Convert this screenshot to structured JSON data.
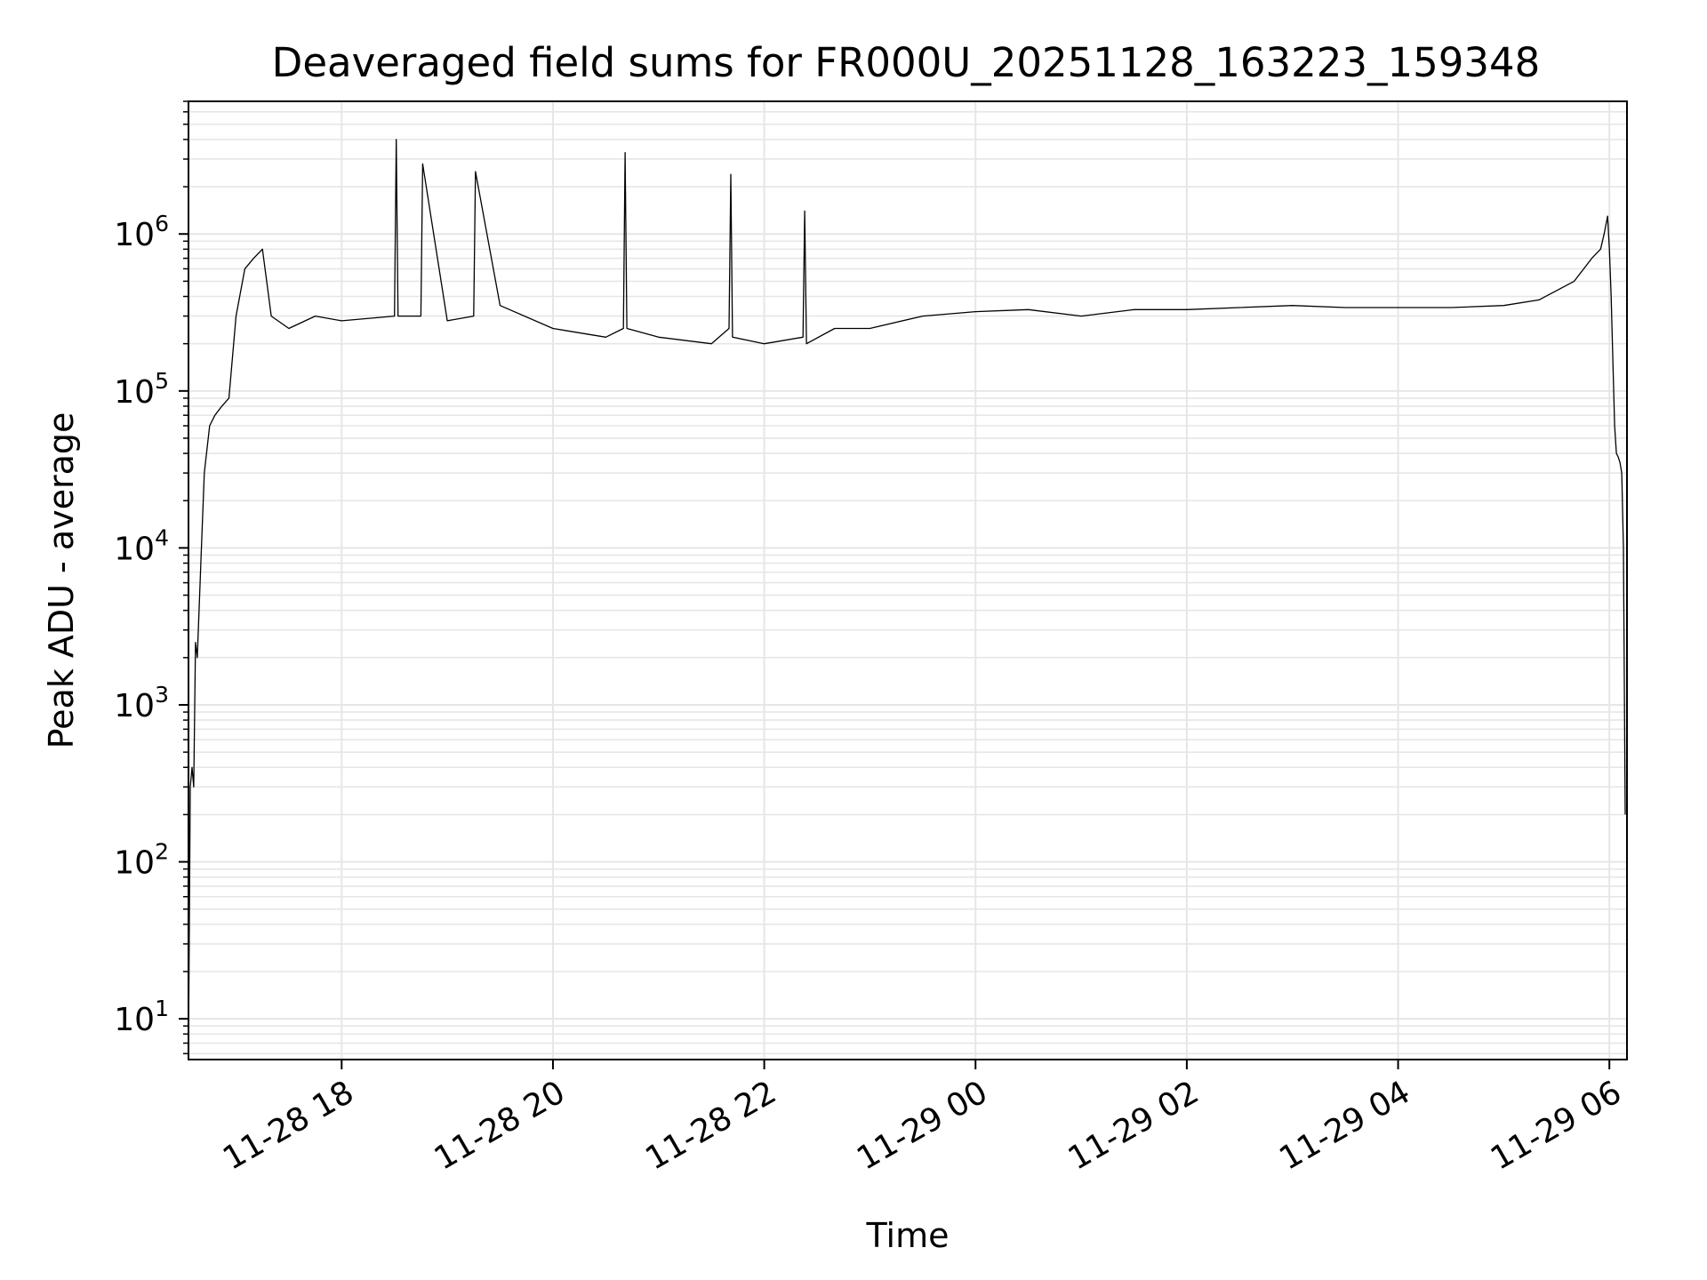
{
  "chart_data": {
    "type": "line",
    "title": "Deaveraged field sums for FR000U_20251128_163223_159348",
    "xlabel": "Time",
    "ylabel": "Peak ADU - average",
    "y_scale": "log",
    "grid": true,
    "legend": "none",
    "line_color": "#000000",
    "grid_color": "#e6e6e6",
    "xlim": [
      "2025-11-28T16:33",
      "2025-11-29T06:10"
    ],
    "ylim": [
      5.5,
      7000000
    ],
    "x_ticks": [
      {
        "value": "2025-11-28T18:00",
        "label": "11-28 18"
      },
      {
        "value": "2025-11-28T20:00",
        "label": "11-28 20"
      },
      {
        "value": "2025-11-28T22:00",
        "label": "11-28 22"
      },
      {
        "value": "2025-11-29T00:00",
        "label": "11-29 00"
      },
      {
        "value": "2025-11-29T02:00",
        "label": "11-29 02"
      },
      {
        "value": "2025-11-29T04:00",
        "label": "11-29 04"
      },
      {
        "value": "2025-11-29T06:00",
        "label": "11-29 06"
      }
    ],
    "y_ticks": [
      {
        "value": 10,
        "base": "10",
        "exp": "1"
      },
      {
        "value": 100,
        "base": "10",
        "exp": "2"
      },
      {
        "value": 1000,
        "base": "10",
        "exp": "3"
      },
      {
        "value": 10000,
        "base": "10",
        "exp": "4"
      },
      {
        "value": 100000,
        "base": "10",
        "exp": "5"
      },
      {
        "value": 1000000,
        "base": "10",
        "exp": "6"
      }
    ],
    "series": [
      {
        "x": [
          "2025-11-28T16:33",
          "2025-11-28T16:34",
          "2025-11-28T16:35",
          "2025-11-28T16:36",
          "2025-11-28T16:37",
          "2025-11-28T16:38",
          "2025-11-28T16:40",
          "2025-11-28T16:42",
          "2025-11-28T16:45",
          "2025-11-28T16:48",
          "2025-11-28T16:52",
          "2025-11-28T16:56",
          "2025-11-28T17:00",
          "2025-11-28T17:05",
          "2025-11-28T17:10",
          "2025-11-28T17:15",
          "2025-11-28T17:20",
          "2025-11-28T17:30",
          "2025-11-28T17:45",
          "2025-11-28T18:00",
          "2025-11-28T18:30",
          "2025-11-28T18:31",
          "2025-11-28T18:32",
          "2025-11-28T18:45",
          "2025-11-28T18:46",
          "2025-11-28T19:00",
          "2025-11-28T19:15",
          "2025-11-28T19:16",
          "2025-11-28T19:30",
          "2025-11-28T20:00",
          "2025-11-28T20:30",
          "2025-11-28T20:40",
          "2025-11-28T20:41",
          "2025-11-28T20:42",
          "2025-11-28T21:00",
          "2025-11-28T21:30",
          "2025-11-28T21:40",
          "2025-11-28T21:41",
          "2025-11-28T21:42",
          "2025-11-28T22:00",
          "2025-11-28T22:22",
          "2025-11-28T22:23",
          "2025-11-28T22:24",
          "2025-11-28T22:40",
          "2025-11-28T23:00",
          "2025-11-28T23:30",
          "2025-11-29T00:00",
          "2025-11-29T00:30",
          "2025-11-29T01:00",
          "2025-11-29T01:30",
          "2025-11-29T02:00",
          "2025-11-29T02:30",
          "2025-11-29T03:00",
          "2025-11-29T03:30",
          "2025-11-29T04:00",
          "2025-11-29T04:30",
          "2025-11-29T05:00",
          "2025-11-29T05:20",
          "2025-11-29T05:40",
          "2025-11-29T05:50",
          "2025-11-29T05:55",
          "2025-11-29T05:57",
          "2025-11-29T05:59",
          "2025-11-29T06:00",
          "2025-11-29T06:01",
          "2025-11-29T06:02",
          "2025-11-29T06:03",
          "2025-11-29T06:04",
          "2025-11-29T06:05",
          "2025-11-29T06:06",
          "2025-11-29T06:07",
          "2025-11-29T06:08",
          "2025-11-29T06:09"
        ],
        "y": [
          6,
          300,
          400,
          300,
          2500,
          2000,
          8000,
          30000,
          60000,
          70000,
          80000,
          90000,
          300000,
          600000,
          700000,
          800000,
          300000,
          250000,
          300000,
          280000,
          300000,
          4000000,
          300000,
          300000,
          2800000,
          280000,
          300000,
          2500000,
          350000,
          250000,
          220000,
          250000,
          3300000,
          250000,
          220000,
          200000,
          250000,
          2400000,
          220000,
          200000,
          220000,
          1400000,
          200000,
          250000,
          250000,
          300000,
          320000,
          330000,
          300000,
          330000,
          330000,
          340000,
          350000,
          340000,
          340000,
          340000,
          350000,
          380000,
          500000,
          700000,
          800000,
          1000000,
          1300000,
          800000,
          400000,
          150000,
          60000,
          40000,
          38000,
          35000,
          30000,
          10000,
          200
        ]
      }
    ]
  }
}
